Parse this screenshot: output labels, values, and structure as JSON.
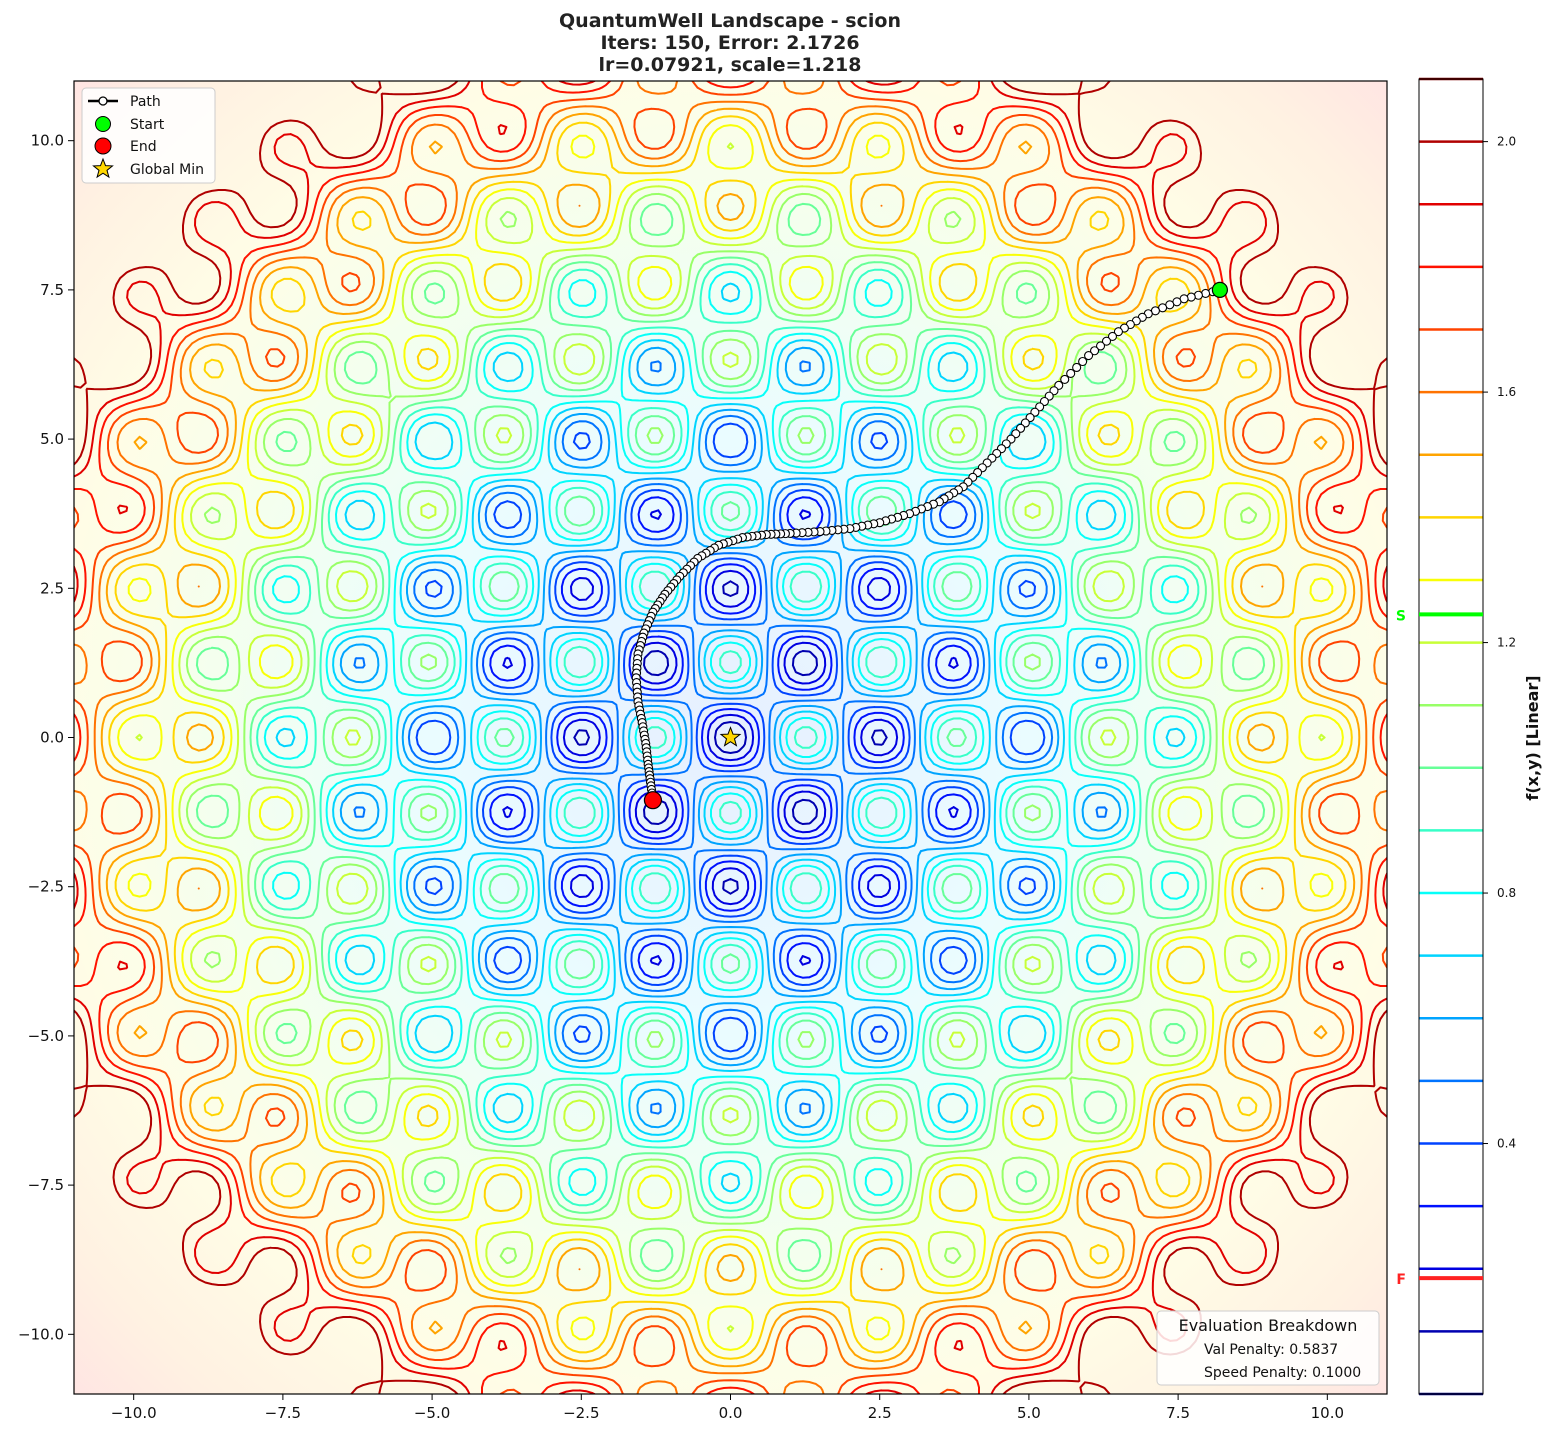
{
  "title": {
    "line1": "QuantumWell Landscape - scion",
    "line2": "Iters: 150, Error: 2.1726",
    "line3": "lr=0.07921, scale=1.218"
  },
  "legend": {
    "path": "Path",
    "start": "Start",
    "end": "End",
    "global_min": "Global Min"
  },
  "info_box": {
    "title": "Evaluation Breakdown",
    "val_penalty": "Val Penalty: 0.5837",
    "speed_penalty": "Speed Penalty: 0.1000"
  },
  "colorbar": {
    "label": "f(x,y) [Linear]",
    "ticks": [
      0.4,
      0.8,
      1.2,
      1.6,
      2.0
    ],
    "tick_labels": [
      "0.4",
      "0.8",
      "1.2",
      "1.6",
      "2.0"
    ],
    "range": [
      -0.0,
      2.1
    ],
    "start_marker": {
      "label": "S",
      "value": 1.245,
      "color": "#00ff00"
    },
    "final_marker": {
      "label": "F",
      "value": 0.185,
      "color": "#ff2222"
    }
  },
  "colors": {
    "path": "#000000",
    "start": "#00ff00",
    "end": "#ff0000",
    "global_min": "#ffd700"
  },
  "chart_data": {
    "type": "contour",
    "xlim": [
      -11,
      11
    ],
    "ylim": [
      -11,
      11
    ],
    "x_ticks": [
      -10.0,
      -7.5,
      -5.0,
      -2.5,
      0.0,
      2.5,
      5.0,
      7.5,
      10.0
    ],
    "x_tick_labels": [
      "−10.0",
      "−7.5",
      "−5.0",
      "−2.5",
      "0.0",
      "2.5",
      "5.0",
      "7.5",
      "10.0"
    ],
    "y_ticks": [
      -10.0,
      -7.5,
      -5.0,
      -2.5,
      0.0,
      2.5,
      5.0,
      7.5,
      10.0
    ],
    "y_tick_labels": [
      "−10.0",
      "−7.5",
      "−5.0",
      "−2.5",
      "0.0",
      "2.5",
      "5.0",
      "7.5",
      "10.0"
    ],
    "contour_levels": [
      0.0,
      0.1,
      0.2,
      0.3,
      0.4,
      0.5,
      0.6,
      0.7,
      0.8,
      0.9,
      1.0,
      1.1,
      1.2,
      1.3,
      1.4,
      1.5,
      1.6,
      1.7,
      1.8,
      1.9,
      2.0,
      2.1
    ],
    "colormap": "jet",
    "grid": false,
    "legend_position": "upper-left",
    "info_position": "lower-right",
    "start": [
      8.2,
      7.5
    ],
    "end": [
      -1.3,
      -1.05
    ],
    "global_min": [
      0.0,
      0.0
    ],
    "path": [
      [
        8.2,
        7.5
      ],
      [
        7.6,
        7.35
      ],
      [
        7.0,
        7.1
      ],
      [
        6.5,
        6.8
      ],
      [
        6.0,
        6.4
      ],
      [
        5.5,
        5.9
      ],
      [
        5.1,
        5.45
      ],
      [
        4.7,
        5.0
      ],
      [
        4.3,
        4.6
      ],
      [
        3.9,
        4.2
      ],
      [
        3.5,
        3.95
      ],
      [
        3.0,
        3.75
      ],
      [
        2.5,
        3.6
      ],
      [
        2.0,
        3.5
      ],
      [
        1.5,
        3.45
      ],
      [
        1.0,
        3.42
      ],
      [
        0.6,
        3.4
      ],
      [
        0.2,
        3.35
      ],
      [
        -0.2,
        3.22
      ],
      [
        -0.55,
        3.0
      ],
      [
        -0.85,
        2.7
      ],
      [
        -1.1,
        2.4
      ],
      [
        -1.3,
        2.1
      ],
      [
        -1.45,
        1.75
      ],
      [
        -1.55,
        1.4
      ],
      [
        -1.58,
        1.0
      ],
      [
        -1.55,
        0.6
      ],
      [
        -1.48,
        0.25
      ],
      [
        -1.42,
        -0.1
      ],
      [
        -1.38,
        -0.45
      ],
      [
        -1.34,
        -0.75
      ],
      [
        -1.3,
        -1.05
      ]
    ]
  }
}
